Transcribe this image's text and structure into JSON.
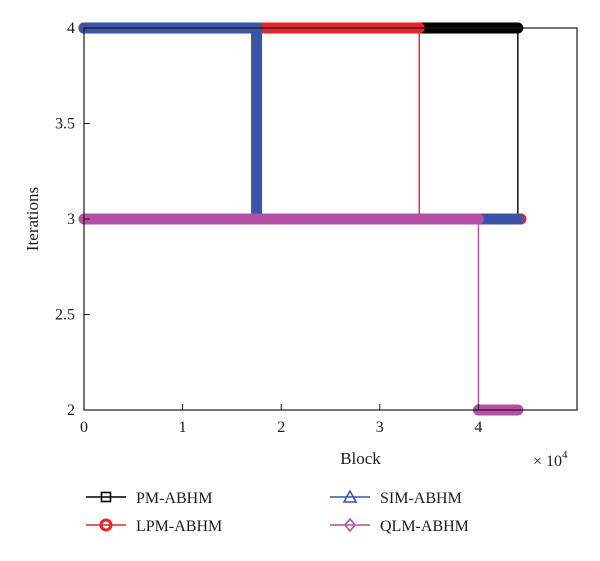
{
  "chart_data": {
    "type": "line",
    "xlabel": "Block",
    "ylabel": "Iterations",
    "x_multiplier_label": "× 10",
    "x_multiplier_exponent": "4",
    "xlim": [
      0,
      50000
    ],
    "ylim": [
      2,
      4
    ],
    "x_ticks": [
      0,
      10000,
      20000,
      30000,
      40000
    ],
    "x_tick_labels": [
      "0",
      "1",
      "2",
      "3",
      "4"
    ],
    "y_ticks": [
      2,
      2.5,
      3,
      3.5,
      4
    ],
    "y_tick_labels": [
      "2",
      "2.5",
      "3",
      "3.5",
      "4"
    ],
    "grid": false,
    "legend_placement": "bottom",
    "series": [
      {
        "name": "PM-ABHM",
        "color": "#000000",
        "marker": "square",
        "segments": [
          {
            "x": [
              0,
              44000
            ],
            "y": [
              4,
              4
            ],
            "thick": true
          },
          {
            "x": [
              44000,
              44000
            ],
            "y": [
              4,
              3
            ],
            "thick": false
          },
          {
            "x": [
              44000,
              44300
            ],
            "y": [
              3,
              3
            ],
            "thick": true
          }
        ]
      },
      {
        "name": "LPM-ABHM",
        "color": "#e8232a",
        "marker": "circle",
        "segments": [
          {
            "x": [
              0,
              34000
            ],
            "y": [
              4,
              4
            ],
            "thick": true
          },
          {
            "x": [
              34000,
              34000
            ],
            "y": [
              4,
              3
            ],
            "thick": false
          },
          {
            "x": [
              34000,
              44300
            ],
            "y": [
              3,
              3
            ],
            "thick": true
          }
        ]
      },
      {
        "name": "SIM-ABHM",
        "color": "#3a55a8",
        "marker": "triangle",
        "segments": [
          {
            "x": [
              0,
              17500
            ],
            "y": [
              4,
              4
            ],
            "thick": true
          },
          {
            "x": [
              17500,
              17500
            ],
            "y": [
              4,
              3
            ],
            "thick": true
          },
          {
            "x": [
              17500,
              44000
            ],
            "y": [
              3,
              3
            ],
            "thick": true
          }
        ]
      },
      {
        "name": "QLM-ABHM",
        "color": "#b44fa6",
        "marker": "diamond",
        "segments": [
          {
            "x": [
              0,
              40000
            ],
            "y": [
              3,
              3
            ],
            "thick": true
          },
          {
            "x": [
              40000,
              40000
            ],
            "y": [
              3,
              2
            ],
            "thick": false
          },
          {
            "x": [
              40000,
              44000
            ],
            "y": [
              2,
              2
            ],
            "thick": true
          }
        ]
      }
    ]
  }
}
